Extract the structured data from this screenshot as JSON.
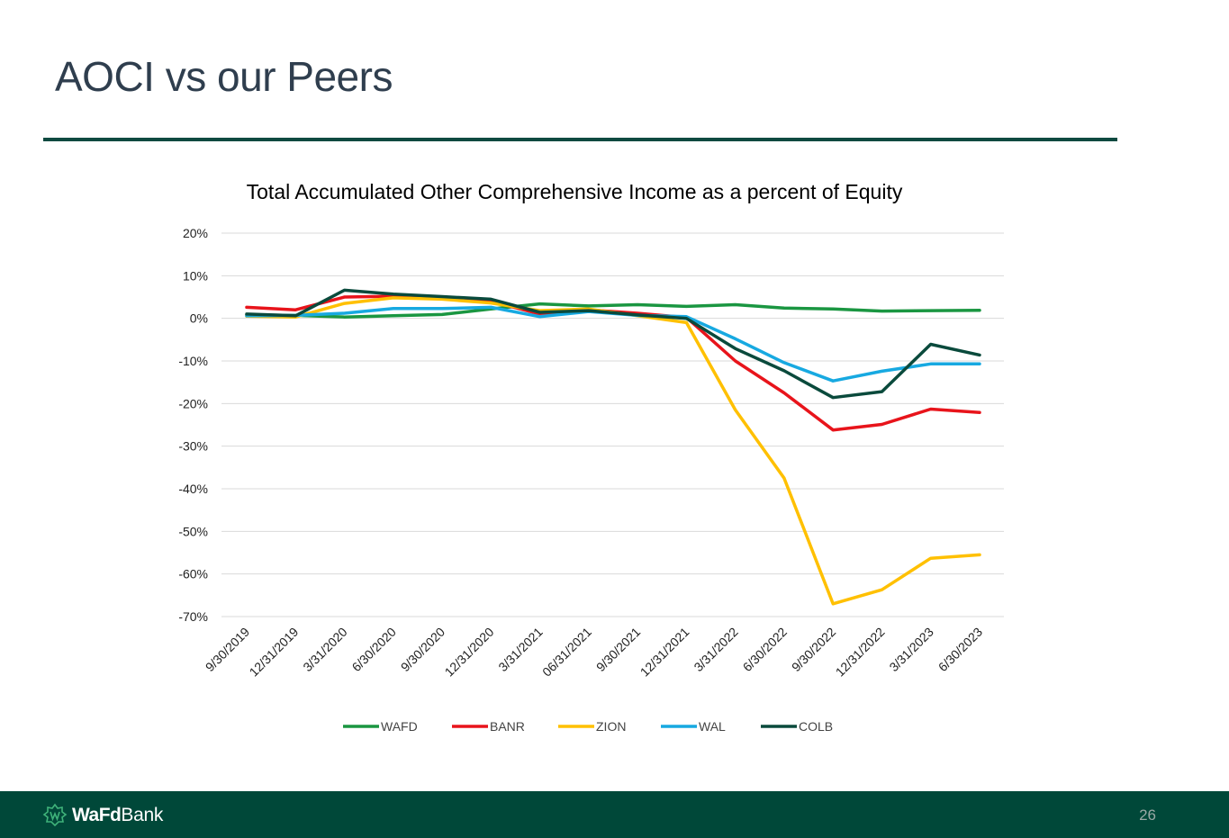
{
  "slide": {
    "title": "AOCI vs our Peers",
    "page_number": "26"
  },
  "footer": {
    "logo_bold": "WaFd",
    "logo_light": "Bank"
  },
  "colors": {
    "footer_bg": "#004839",
    "rule": "#0f4a40",
    "title_text": "#2f3e4e"
  },
  "chart_data": {
    "type": "line",
    "title": "Total Accumulated Other Comprehensive Income as a percent of Equity",
    "xlabel": "",
    "ylabel": "",
    "ylim": [
      -70,
      20
    ],
    "yticks": [
      20,
      10,
      0,
      -10,
      -20,
      -30,
      -40,
      -50,
      -60,
      -70
    ],
    "ytick_labels": [
      "20%",
      "10%",
      "0%",
      "-10%",
      "-20%",
      "-30%",
      "-40%",
      "-50%",
      "-60%",
      "-70%"
    ],
    "grid": true,
    "legend_position": "bottom",
    "categories": [
      "9/30/2019",
      "12/31/2019",
      "3/31/2020",
      "6/30/2020",
      "9/30/2020",
      "12/31/2020",
      "3/31/2021",
      "06/31/2021",
      "9/30/2021",
      "12/31/2021",
      "3/31/2022",
      "6/30/2022",
      "9/30/2022",
      "12/31/2022",
      "3/31/2023",
      "6/30/2023"
    ],
    "series": [
      {
        "name": "WAFD",
        "color": "#1a9641",
        "values": [
          0.8,
          0.7,
          0.3,
          0.6,
          0.9,
          2.2,
          3.4,
          2.9,
          3.2,
          2.8,
          3.2,
          2.4,
          2.2,
          1.7,
          1.8,
          1.9
        ]
      },
      {
        "name": "BANR",
        "color": "#e8141b",
        "values": [
          2.6,
          2.0,
          5.0,
          5.2,
          4.9,
          4.0,
          1.0,
          2.0,
          1.2,
          0.2,
          -10.0,
          -17.5,
          -26.2,
          -24.9,
          -21.3,
          -22.1
        ]
      },
      {
        "name": "ZION",
        "color": "#ffc000",
        "values": [
          0.5,
          0.3,
          3.5,
          4.8,
          4.5,
          3.6,
          1.8,
          2.2,
          0.6,
          -1.0,
          -21.5,
          -37.5,
          -67.0,
          -63.7,
          -56.3,
          -55.5
        ]
      },
      {
        "name": "WAL",
        "color": "#17a9e1",
        "values": [
          0.6,
          0.7,
          1.2,
          2.3,
          2.3,
          2.6,
          0.4,
          1.6,
          0.7,
          0.4,
          -4.8,
          -10.4,
          -14.7,
          -12.4,
          -10.7,
          -10.7
        ]
      },
      {
        "name": "COLB",
        "color": "#0a4a3c",
        "values": [
          1.0,
          0.6,
          6.6,
          5.7,
          5.1,
          4.5,
          1.4,
          1.8,
          0.8,
          0.0,
          -7.1,
          -12.3,
          -18.6,
          -17.2,
          -6.1,
          -8.6
        ]
      }
    ]
  }
}
